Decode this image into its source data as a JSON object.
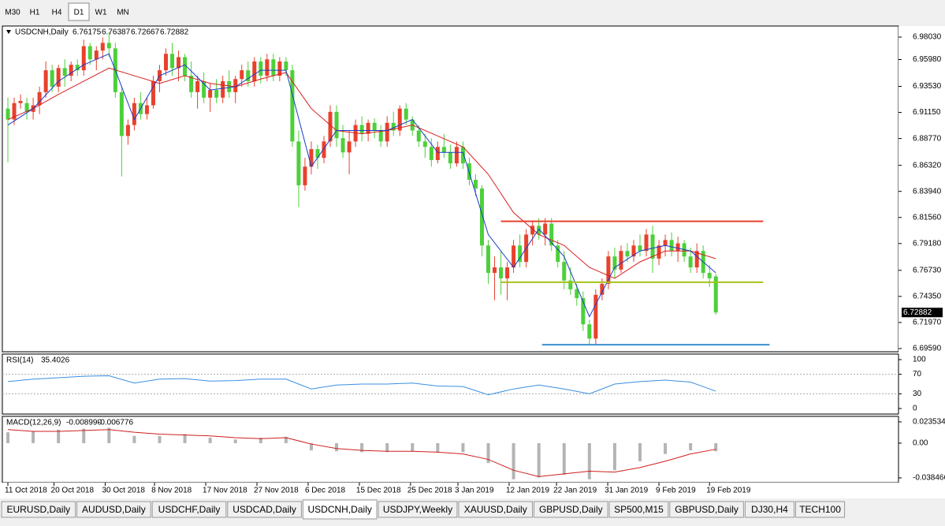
{
  "toolbar": {
    "timeframes": [
      "M30",
      "H1",
      "H4",
      "D1",
      "W1",
      "MN"
    ],
    "active": 3
  },
  "chart_data": [
    {
      "type": "candlestick",
      "title": "USDCNH,Daily",
      "up_color": "#e8412c",
      "down_color": "#4cd03a",
      "candles": [
        [
          6.915,
          6.925,
          6.866,
          6.905
        ],
        [
          6.905,
          6.925,
          6.9,
          6.92
        ],
        [
          6.92,
          6.928,
          6.915,
          6.922
        ],
        [
          6.92,
          6.925,
          6.905,
          6.912
        ],
        [
          6.912,
          6.925,
          6.905,
          6.918
        ],
        [
          6.918,
          6.935,
          6.91,
          6.93
        ],
        [
          6.93,
          6.958,
          6.925,
          6.95
        ],
        [
          6.95,
          6.955,
          6.93,
          6.935
        ],
        [
          6.935,
          6.955,
          6.93,
          6.952
        ],
        [
          6.952,
          6.96,
          6.935,
          6.945
        ],
        [
          6.945,
          6.958,
          6.94,
          6.955
        ],
        [
          6.955,
          6.96,
          6.945,
          6.95
        ],
        [
          6.95,
          6.978,
          6.945,
          6.972
        ],
        [
          6.972,
          6.975,
          6.955,
          6.96
        ],
        [
          6.96,
          6.972,
          6.95,
          6.968
        ],
        [
          6.968,
          6.98,
          6.96,
          6.975
        ],
        [
          6.975,
          6.985,
          6.962,
          6.97
        ],
        [
          6.97,
          6.975,
          6.925,
          6.93
        ],
        [
          6.93,
          6.935,
          6.853,
          6.89
        ],
        [
          6.89,
          6.905,
          6.882,
          6.9
        ],
        [
          6.9,
          6.925,
          6.895,
          6.92
        ],
        [
          6.92,
          6.93,
          6.905,
          6.91
        ],
        [
          6.91,
          6.925,
          6.905,
          6.918
        ],
        [
          6.918,
          6.945,
          6.915,
          6.94
        ],
        [
          6.94,
          6.955,
          6.93,
          6.95
        ],
        [
          6.95,
          6.97,
          6.945,
          6.965
        ],
        [
          6.965,
          6.975,
          6.945,
          6.952
        ],
        [
          6.952,
          6.968,
          6.94,
          6.962
        ],
        [
          6.962,
          6.965,
          6.94,
          6.945
        ],
        [
          6.945,
          6.958,
          6.925,
          6.93
        ],
        [
          6.93,
          6.945,
          6.915,
          6.94
        ],
        [
          6.94,
          6.948,
          6.92,
          6.925
        ],
        [
          6.925,
          6.938,
          6.912,
          6.932
        ],
        [
          6.932,
          6.942,
          6.92,
          6.925
        ],
        [
          6.925,
          6.945,
          6.92,
          6.94
        ],
        [
          6.94,
          6.95,
          6.925,
          6.93
        ],
        [
          6.93,
          6.945,
          6.92,
          6.942
        ],
        [
          6.942,
          6.955,
          6.935,
          6.95
        ],
        [
          6.95,
          6.958,
          6.935,
          6.94
        ],
        [
          6.94,
          6.962,
          6.935,
          6.958
        ],
        [
          6.958,
          6.962,
          6.938,
          6.945
        ],
        [
          6.945,
          6.965,
          6.94,
          6.96
        ],
        [
          6.96,
          6.965,
          6.94,
          6.945
        ],
        [
          6.945,
          6.962,
          6.94,
          6.958
        ],
        [
          6.958,
          6.962,
          6.945,
          6.95
        ],
        [
          6.95,
          6.955,
          6.88,
          6.885
        ],
        [
          6.885,
          6.895,
          6.825,
          6.845
        ],
        [
          6.845,
          6.87,
          6.84,
          6.862
        ],
        [
          6.862,
          6.885,
          6.855,
          6.878
        ],
        [
          6.878,
          6.882,
          6.86,
          6.87
        ],
        [
          6.87,
          6.89,
          6.865,
          6.885
        ],
        [
          6.885,
          6.918,
          6.88,
          6.912
        ],
        [
          6.912,
          6.918,
          6.88,
          6.888
        ],
        [
          6.888,
          6.9,
          6.87,
          6.875
        ],
        [
          6.875,
          6.895,
          6.855,
          6.885
        ],
        [
          6.885,
          6.905,
          6.88,
          6.9
        ],
        [
          6.9,
          6.908,
          6.885,
          6.892
        ],
        [
          6.892,
          6.905,
          6.885,
          6.902
        ],
        [
          6.902,
          6.906,
          6.888,
          6.895
        ],
        [
          6.895,
          6.9,
          6.88,
          6.885
        ],
        [
          6.885,
          6.908,
          6.88,
          6.902
        ],
        [
          6.902,
          6.912,
          6.89,
          6.895
        ],
        [
          6.895,
          6.918,
          6.89,
          6.915
        ],
        [
          6.915,
          6.92,
          6.9,
          6.905
        ],
        [
          6.905,
          6.908,
          6.89,
          6.895
        ],
        [
          6.895,
          6.9,
          6.88,
          6.885
        ],
        [
          6.885,
          6.892,
          6.87,
          6.88
        ],
        [
          6.88,
          6.888,
          6.862,
          6.868
        ],
        [
          6.868,
          6.885,
          6.865,
          6.88
        ],
        [
          6.88,
          6.892,
          6.87,
          6.875
        ],
        [
          6.875,
          6.882,
          6.86,
          6.865
        ],
        [
          6.865,
          6.885,
          6.862,
          6.88
        ],
        [
          6.88,
          6.885,
          6.86,
          6.865
        ],
        [
          6.865,
          6.87,
          6.845,
          6.85
        ],
        [
          6.85,
          6.855,
          6.835,
          6.842
        ],
        [
          6.842,
          6.845,
          6.78,
          6.79
        ],
        [
          6.79,
          6.795,
          6.755,
          6.765
        ],
        [
          6.765,
          6.78,
          6.74,
          6.77
        ],
        [
          6.77,
          6.785,
          6.745,
          6.76
        ],
        [
          6.76,
          6.775,
          6.74,
          6.77
        ],
        [
          6.77,
          6.795,
          6.765,
          6.79
        ],
        [
          6.79,
          6.8,
          6.77,
          6.775
        ],
        [
          6.775,
          6.805,
          6.77,
          6.8
        ],
        [
          6.8,
          6.812,
          6.79,
          6.808
        ],
        [
          6.808,
          6.815,
          6.795,
          6.8
        ],
        [
          6.8,
          6.815,
          6.79,
          6.81
        ],
        [
          6.81,
          6.815,
          6.785,
          6.79
        ],
        [
          6.79,
          6.795,
          6.77,
          6.775
        ],
        [
          6.775,
          6.785,
          6.75,
          6.758
        ],
        [
          6.758,
          6.77,
          6.745,
          6.75
        ],
        [
          6.75,
          6.755,
          6.735,
          6.742
        ],
        [
          6.742,
          6.748,
          6.712,
          6.718
        ],
        [
          6.718,
          6.722,
          6.7,
          6.705
        ],
        [
          6.705,
          6.75,
          6.7,
          6.745
        ],
        [
          6.745,
          6.76,
          6.74,
          6.755
        ],
        [
          6.755,
          6.785,
          6.75,
          6.78
        ],
        [
          6.78,
          6.788,
          6.76,
          6.768
        ],
        [
          6.768,
          6.79,
          6.765,
          6.785
        ],
        [
          6.785,
          6.792,
          6.775,
          6.78
        ],
        [
          6.78,
          6.795,
          6.775,
          6.79
        ],
        [
          6.79,
          6.8,
          6.78,
          6.785
        ],
        [
          6.785,
          6.805,
          6.78,
          6.8
        ],
        [
          6.8,
          6.808,
          6.765,
          6.778
        ],
        [
          6.778,
          6.795,
          6.772,
          6.79
        ],
        [
          6.79,
          6.8,
          6.78,
          6.795
        ],
        [
          6.795,
          6.802,
          6.78,
          6.785
        ],
        [
          6.785,
          6.798,
          6.775,
          6.792
        ],
        [
          6.792,
          6.795,
          6.775,
          6.78
        ],
        [
          6.78,
          6.788,
          6.765,
          6.77
        ],
        [
          6.77,
          6.792,
          6.765,
          6.785
        ],
        [
          6.785,
          6.79,
          6.76,
          6.765
        ],
        [
          6.765,
          6.772,
          6.752,
          6.76
        ],
        [
          6.76175,
          6.76387,
          6.72667,
          6.72882
        ]
      ],
      "ma_x": [
        0,
        4,
        8,
        12,
        16,
        20,
        24,
        28,
        32,
        36,
        40,
        44,
        48,
        52,
        56,
        60,
        64,
        68,
        72,
        76,
        80,
        84,
        88,
        92,
        96,
        100,
        104,
        108,
        112
      ],
      "moving_averages": [
        {
          "color": "#d81e1e",
          "values": [
            6.905,
            6.915,
            6.928,
            6.94,
            6.952,
            6.945,
            6.938,
            6.945,
            6.938,
            6.935,
            6.942,
            6.948,
            6.915,
            6.895,
            6.892,
            6.895,
            6.9,
            6.89,
            6.88,
            6.855,
            6.82,
            6.8,
            6.79,
            6.77,
            6.76,
            6.775,
            6.785,
            6.785,
            6.778
          ]
        },
        {
          "color": "#1c3cc8",
          "values": [
            6.9,
            6.915,
            6.94,
            6.955,
            6.965,
            6.905,
            6.945,
            6.955,
            6.932,
            6.935,
            6.95,
            6.95,
            6.862,
            6.895,
            6.895,
            6.895,
            6.905,
            6.875,
            6.875,
            6.8,
            6.77,
            6.805,
            6.78,
            6.725,
            6.77,
            6.785,
            6.79,
            6.785,
            6.765
          ]
        }
      ],
      "levels": [
        {
          "value": 6.8121,
          "from": 78,
          "to": 119.5,
          "color": "#e8412c"
        },
        {
          "value": 6.7565,
          "from": 78,
          "to": 119.5,
          "color": "#a6c21a"
        },
        {
          "value": 6.6994,
          "from": 84.5,
          "to": 120.5,
          "color": "#3a8fd0"
        }
      ],
      "ylim": [
        6.693,
        6.9904
      ],
      "yticks": [
        {
          "value": 6.9803,
          "label": "6.98030"
        },
        {
          "value": 6.9598,
          "label": "6.95980"
        },
        {
          "value": 6.9353,
          "label": "6.93530"
        },
        {
          "value": 6.9115,
          "label": "6.91150"
        },
        {
          "value": 6.8877,
          "label": "6.88770"
        },
        {
          "value": 6.8632,
          "label": "6.86320"
        },
        {
          "value": 6.8394,
          "label": "6.83940"
        },
        {
          "value": 6.8156,
          "label": "6.81560"
        },
        {
          "value": 6.7918,
          "label": "6.79180"
        },
        {
          "value": 6.7673,
          "label": "6.76730"
        },
        {
          "value": 6.7435,
          "label": "6.74350"
        },
        {
          "value": 6.7197,
          "label": "6.71970"
        },
        {
          "value": 6.6959,
          "label": "6.69590"
        }
      ],
      "xticks": [
        {
          "value": 0,
          "label": "11 Oct 2018"
        },
        {
          "value": 7.3,
          "label": "20 Oct 2018"
        },
        {
          "value": 15.4,
          "label": "30 Oct 2018"
        },
        {
          "value": 23.2,
          "label": "8 Nov 2018"
        },
        {
          "value": 31.3,
          "label": "17 Nov 2018"
        },
        {
          "value": 39.4,
          "label": "27 Nov 2018"
        },
        {
          "value": 47.5,
          "label": "6 Dec 2018"
        },
        {
          "value": 55.6,
          "label": "15 Dec 2018"
        },
        {
          "value": 63.7,
          "label": "25 Dec 2018"
        },
        {
          "value": 71.2,
          "label": "3 Jan 2019"
        },
        {
          "value": 79.3,
          "label": "12 Jan 2019"
        },
        {
          "value": 86.8,
          "label": "22 Jan 2019"
        },
        {
          "value": 94.9,
          "label": "31 Jan 2019"
        },
        {
          "value": 103,
          "label": "9 Feb 2019"
        },
        {
          "value": 111,
          "label": "19 Feb 2019"
        }
      ]
    },
    {
      "type": "line",
      "title": "RSI(14)",
      "color": "#3a8fe0",
      "x": [
        0,
        4,
        8,
        12,
        16,
        20,
        24,
        28,
        32,
        36,
        40,
        44,
        48,
        52,
        56,
        60,
        64,
        68,
        72,
        76,
        80,
        84,
        88,
        92,
        96,
        100,
        104,
        108,
        112
      ],
      "values": [
        55,
        60,
        63,
        66,
        67,
        52,
        60,
        61,
        56,
        57,
        60,
        60,
        40,
        48,
        50,
        50,
        52,
        46,
        45,
        28,
        40,
        48,
        40,
        30,
        50,
        55,
        58,
        54,
        35.4026
      ],
      "ylim": [
        0,
        100
      ],
      "yticks": [
        100,
        70,
        30,
        0
      ]
    },
    {
      "type": "macd",
      "x": [
        0,
        4,
        8,
        12,
        16,
        20,
        24,
        28,
        32,
        36,
        40,
        44,
        48,
        52,
        56,
        60,
        64,
        68,
        72,
        76,
        80,
        84,
        88,
        92,
        96,
        100,
        104,
        108,
        112
      ],
      "series": [
        {
          "name": "MACD(12,26,9)",
          "style": "histogram",
          "color": "#b4b4b4",
          "values": [
            0.012,
            0.013,
            0.015,
            0.016,
            0.017,
            0.008,
            0.008,
            0.01,
            0.006,
            0.004,
            0.006,
            0.007,
            -0.008,
            -0.009,
            -0.01,
            -0.01,
            -0.009,
            -0.01,
            -0.01,
            -0.022,
            -0.04,
            -0.038,
            -0.035,
            -0.04,
            -0.03,
            -0.02,
            -0.012,
            -0.008,
            -0.00899
          ],
          "value_labels": [
            null,
            null,
            null,
            null,
            null,
            null,
            null,
            null,
            null,
            null,
            null,
            null,
            null,
            null,
            null,
            null,
            null,
            null,
            null,
            null,
            null,
            null,
            null,
            null,
            null,
            null,
            null,
            null,
            "-0.008990"
          ]
        },
        {
          "style": "line",
          "color": "#d01e1e",
          "values": [
            0.015,
            0.013,
            0.013,
            0.014,
            0.015,
            0.012,
            0.01,
            0.009,
            0.008,
            0.006,
            0.005,
            0.006,
            -0.001,
            -0.006,
            -0.008,
            -0.009,
            -0.009,
            -0.01,
            -0.012,
            -0.018,
            -0.03,
            -0.037,
            -0.034,
            -0.031,
            -0.032,
            -0.027,
            -0.02,
            -0.012,
            -0.006776
          ]
        }
      ],
      "ylim": [
        -0.0437,
        0.0296
      ],
      "yticks": [
        0.023534,
        {
          "value": 0,
          "label": "0.00"
        },
        -0.038466
      ]
    }
  ],
  "tabs": [
    "EURUSD,Daily",
    "AUDUSD,Daily",
    "USDCHF,Daily",
    "USDCAD,Daily",
    "USDCNH,Daily",
    "USDJPY,Weekly",
    "XAUUSD,Daily",
    "GBPUSD,Daily",
    "SP500,M15",
    "GBPUSD,Daily",
    "DJ30,H4",
    "TECH100"
  ],
  "active_tab": 4
}
